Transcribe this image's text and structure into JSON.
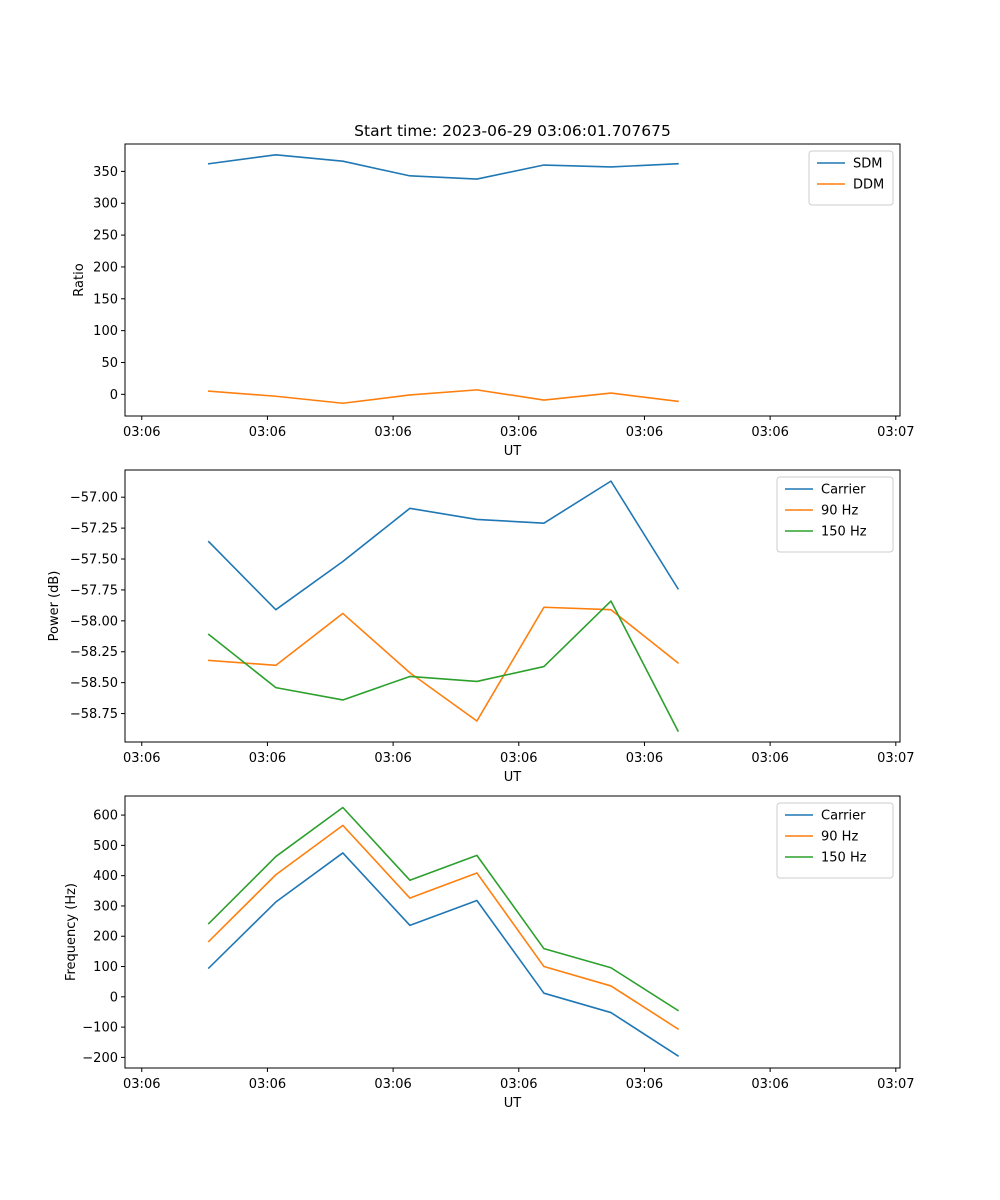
{
  "figure": {
    "title": "Start time: 2023-06-29 03:06:01.707675"
  },
  "chart_data": [
    {
      "type": "line",
      "xlabel": "UT",
      "ylabel": "Ratio",
      "x": [
        0.8,
        1.6,
        2.4,
        3.2,
        4.0,
        4.8,
        5.6,
        6.4
      ],
      "x_ticks": [
        0,
        1.5,
        3,
        4.5,
        6,
        7.5,
        9
      ],
      "x_tick_labels": [
        "03:06",
        "03:06",
        "03:06",
        "03:06",
        "03:06",
        "03:06",
        "03:07"
      ],
      "xlim": [
        -0.2,
        9.05
      ],
      "ylim": [
        -34,
        393
      ],
      "y_ticks": [
        0,
        50,
        100,
        150,
        200,
        250,
        300,
        350
      ],
      "y_tick_labels": [
        "0",
        "50",
        "100",
        "150",
        "200",
        "250",
        "300",
        "350"
      ],
      "legend": "top-right",
      "series": [
        {
          "name": "SDM",
          "color": "#1f77b4",
          "values": [
            362,
            376,
            366,
            343,
            338,
            360,
            357,
            362
          ]
        },
        {
          "name": "DDM",
          "color": "#ff7f0e",
          "values": [
            5,
            -3,
            -14,
            -1,
            7,
            -9,
            2,
            -11
          ]
        }
      ]
    },
    {
      "type": "line",
      "xlabel": "UT",
      "ylabel": "Power (dB)",
      "x": [
        0.8,
        1.6,
        2.4,
        3.2,
        4.0,
        4.8,
        5.6,
        6.4
      ],
      "x_ticks": [
        0,
        1.5,
        3,
        4.5,
        6,
        7.5,
        9
      ],
      "x_tick_labels": [
        "03:06",
        "03:06",
        "03:06",
        "03:06",
        "03:06",
        "03:06",
        "03:07"
      ],
      "xlim": [
        -0.2,
        9.05
      ],
      "ylim": [
        -58.98,
        -56.78
      ],
      "y_ticks": [
        -58.75,
        -58.5,
        -58.25,
        -58.0,
        -57.75,
        -57.5,
        -57.25,
        -57.0
      ],
      "y_tick_labels": [
        "−58.75",
        "−58.50",
        "−58.25",
        "−58.00",
        "−57.75",
        "−57.50",
        "−57.25",
        "−57.00"
      ],
      "legend": "top-right",
      "series": [
        {
          "name": "Carrier",
          "color": "#1f77b4",
          "values": [
            -57.36,
            -57.91,
            -57.52,
            -57.09,
            -57.18,
            -57.21,
            -56.87,
            -57.74
          ]
        },
        {
          "name": "90 Hz",
          "color": "#ff7f0e",
          "values": [
            -58.32,
            -58.36,
            -57.94,
            -58.42,
            -58.81,
            -57.89,
            -57.91,
            -58.34
          ]
        },
        {
          "name": "150 Hz",
          "color": "#2ca02c",
          "values": [
            -58.11,
            -58.54,
            -58.64,
            -58.45,
            -58.49,
            -58.37,
            -57.84,
            -58.89
          ]
        }
      ]
    },
    {
      "type": "line",
      "xlabel": "UT",
      "ylabel": "Frequency (Hz)",
      "x": [
        0.8,
        1.6,
        2.4,
        3.2,
        4.0,
        4.8,
        5.6,
        6.4
      ],
      "x_ticks": [
        0,
        1.5,
        3,
        4.5,
        6,
        7.5,
        9
      ],
      "x_tick_labels": [
        "03:06",
        "03:06",
        "03:06",
        "03:06",
        "03:06",
        "03:06",
        "03:07"
      ],
      "xlim": [
        -0.2,
        9.05
      ],
      "ylim": [
        -235,
        663
      ],
      "y_ticks": [
        -200,
        -100,
        0,
        100,
        200,
        300,
        400,
        500,
        600
      ],
      "y_tick_labels": [
        "−200",
        "−100",
        "0",
        "100",
        "200",
        "300",
        "400",
        "500",
        "600"
      ],
      "legend": "top-right",
      "series": [
        {
          "name": "Carrier",
          "color": "#1f77b4",
          "values": [
            95,
            313,
            475,
            236,
            318,
            12,
            -52,
            -195
          ]
        },
        {
          "name": "90 Hz",
          "color": "#ff7f0e",
          "values": [
            183,
            403,
            566,
            326,
            409,
            100,
            36,
            -106
          ]
        },
        {
          "name": "150 Hz",
          "color": "#2ca02c",
          "values": [
            242,
            463,
            625,
            385,
            467,
            159,
            96,
            -45
          ]
        }
      ]
    }
  ]
}
